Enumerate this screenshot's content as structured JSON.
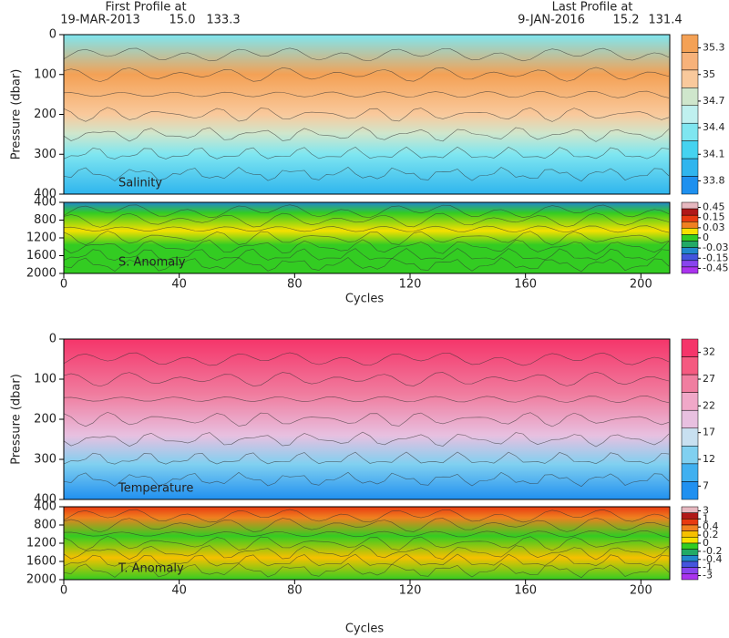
{
  "chart_data": [
    {
      "type": "contour",
      "label": "Salinity",
      "ylabel": "Pressure (dbar)",
      "ylim": [
        0,
        400
      ],
      "yticks": [
        0,
        100,
        200,
        300,
        400
      ],
      "colorbar": {
        "colors": [
          "#f4a155",
          "#f7b27a",
          "#f9c99c",
          "#cfe6cc",
          "#bff0ef",
          "#7fe6f0",
          "#45d3f0",
          "#2fb5ee",
          "#1e90ef"
        ],
        "labels": [
          35.3,
          35,
          34.7,
          34.4,
          34.1,
          33.8
        ]
      }
    },
    {
      "type": "contour",
      "label": "S. Anomaly",
      "ylim": [
        400,
        2000
      ],
      "yticks": [
        400,
        800,
        1200,
        1600,
        2000
      ],
      "colorbar": {
        "colors": [
          "#e7b8c0",
          "#b01818",
          "#e83a10",
          "#f08020",
          "#f7e000",
          "#33cc22",
          "#22aa66",
          "#2288cc",
          "#4455dd",
          "#8844ee",
          "#aa33ee"
        ],
        "labels": [
          0.45,
          0.15,
          0.03,
          0,
          -0.03,
          -0.15,
          -0.45
        ]
      }
    },
    {
      "type": "contour",
      "label": "Temperature",
      "ylabel": "Pressure (dbar)",
      "ylim": [
        0,
        400
      ],
      "yticks": [
        0,
        100,
        200,
        300,
        400
      ],
      "colorbar": {
        "colors": [
          "#f5356a",
          "#f55a80",
          "#f07ea0",
          "#f0a8c8",
          "#e8c0e0",
          "#c8e0f0",
          "#80d0f0",
          "#40b0f0",
          "#2090f0"
        ],
        "labels": [
          32,
          27,
          22,
          17,
          12,
          7
        ]
      }
    },
    {
      "type": "contour",
      "label": "T. Anomaly",
      "ylim": [
        400,
        2000
      ],
      "yticks": [
        400,
        800,
        1200,
        1600,
        2000
      ],
      "colorbar": {
        "colors": [
          "#e7b8c0",
          "#b01818",
          "#e83a10",
          "#f08020",
          "#f7c000",
          "#f7e000",
          "#33cc22",
          "#22aa66",
          "#2288cc",
          "#4455dd",
          "#8844ee",
          "#aa33ee"
        ],
        "labels": [
          3,
          1,
          0.4,
          0.2,
          0,
          -0.2,
          -0.4,
          -1,
          -3
        ]
      }
    }
  ],
  "header": {
    "first_label": "First Profile at",
    "first_date": "19-MAR-2013",
    "first_lat": "15.0",
    "first_lon": "133.3",
    "last_label": "Last Profile at",
    "last_date": "9-JAN-2016",
    "last_lat": "15.2",
    "last_lon": "131.4"
  },
  "xaxis": {
    "label": "Cycles",
    "xlim": [
      0,
      210
    ],
    "xticks": [
      0,
      40,
      80,
      120,
      160,
      200
    ]
  }
}
